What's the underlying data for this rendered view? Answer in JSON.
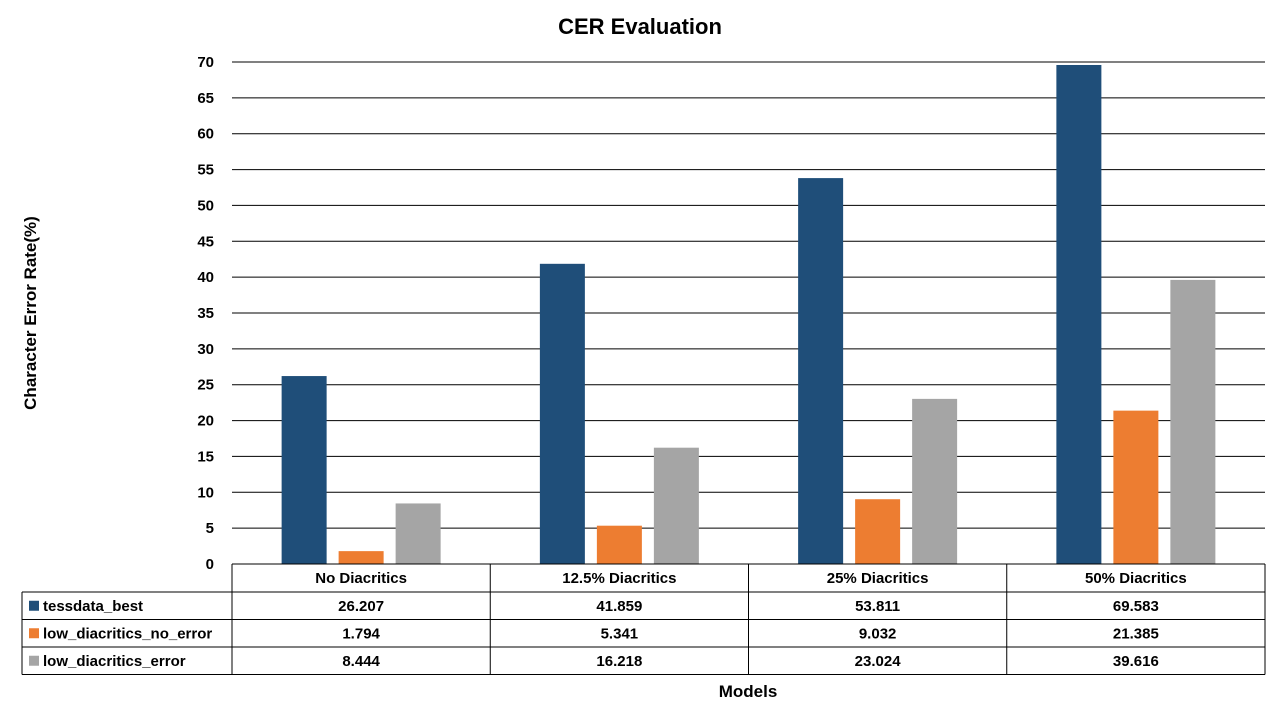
{
  "chart_data": {
    "type": "bar",
    "title": "CER Evaluation",
    "xlabel": "Models",
    "ylabel": "Character Error Rate(%)",
    "ylim": [
      0,
      70
    ],
    "yticks": [
      0,
      5,
      10,
      15,
      20,
      25,
      30,
      35,
      40,
      45,
      50,
      55,
      60,
      65,
      70
    ],
    "grid": true,
    "legend_placement": "data-table",
    "categories": [
      "No Diacritics",
      "12.5% Diacritics",
      "25% Diacritics",
      "50% Diacritics"
    ],
    "series": [
      {
        "name": "tessdata_best",
        "color": "#1F4E79",
        "values": [
          26.207,
          41.859,
          53.811,
          69.583
        ],
        "labels": [
          "26.207",
          "41.859",
          "53.811",
          "69.583"
        ]
      },
      {
        "name": "low_diacritics_no_error",
        "color": "#ED7D31",
        "values": [
          1.794,
          5.341,
          9.032,
          21.385
        ],
        "labels": [
          "1.794",
          "5.341",
          "9.032",
          "21.385"
        ]
      },
      {
        "name": "low_diacritics_error",
        "color": "#A5A5A5",
        "values": [
          8.444,
          16.218,
          23.024,
          39.616
        ],
        "labels": [
          "8.444",
          "16.218",
          "23.024",
          "39.616"
        ]
      }
    ]
  }
}
